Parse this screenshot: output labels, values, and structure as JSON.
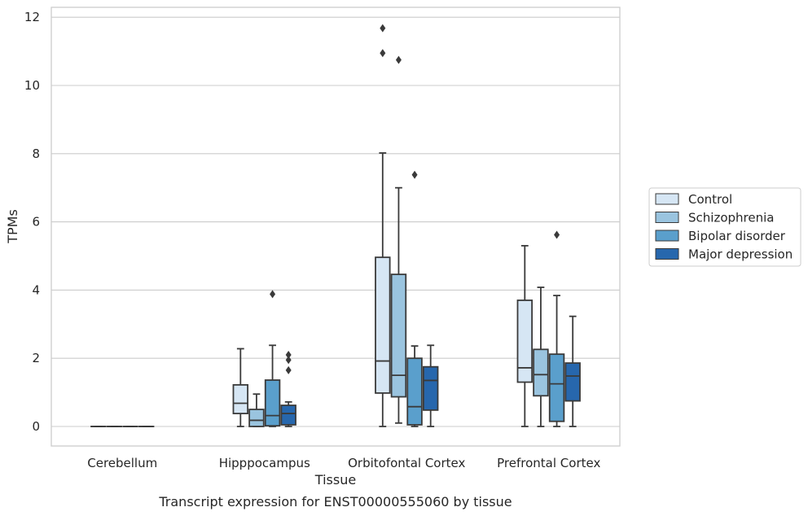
{
  "chart_data": {
    "type": "box",
    "title": "Transcript expression for ENST00000555060 by tissue",
    "xlabel": "Tissue",
    "ylabel": "TPMs",
    "ylim": [
      -0.6,
      12.3
    ],
    "yticks": [
      0,
      2,
      4,
      6,
      8,
      10,
      12
    ],
    "grid": true,
    "legend_position": "right",
    "categories": [
      "Cerebellum",
      "Hipppocampus",
      "Orbitofontal Cortex",
      "Prefrontal Cortex"
    ],
    "series": [
      {
        "name": "Control",
        "color": "#d6e6f4",
        "boxes": [
          {
            "whislo": 0,
            "q1": 0,
            "med": 0,
            "q3": 0,
            "whishi": 0,
            "fliers": []
          },
          {
            "whislo": 0,
            "q1": 0.38,
            "med": 0.68,
            "q3": 1.22,
            "whishi": 2.28,
            "fliers": []
          },
          {
            "whislo": 0,
            "q1": 0.98,
            "med": 1.92,
            "q3": 4.96,
            "whishi": 8.02,
            "fliers": [
              10.95,
              11.68
            ]
          },
          {
            "whislo": 0,
            "q1": 1.3,
            "med": 1.72,
            "q3": 3.7,
            "whishi": 5.3,
            "fliers": []
          }
        ]
      },
      {
        "name": "Schizophrenia",
        "color": "#9ac4df",
        "boxes": [
          {
            "whislo": 0,
            "q1": 0,
            "med": 0,
            "q3": 0,
            "whishi": 0,
            "fliers": []
          },
          {
            "whislo": 0,
            "q1": 0,
            "med": 0.18,
            "q3": 0.5,
            "whishi": 0.95,
            "fliers": []
          },
          {
            "whislo": 0.1,
            "q1": 0.87,
            "med": 1.5,
            "q3": 4.46,
            "whishi": 7.0,
            "fliers": [
              10.75
            ]
          },
          {
            "whislo": 0,
            "q1": 0.9,
            "med": 1.52,
            "q3": 2.26,
            "whishi": 4.08,
            "fliers": []
          }
        ]
      },
      {
        "name": "Bipolar disorder",
        "color": "#5a9fcc",
        "boxes": [
          {
            "whislo": 0,
            "q1": 0,
            "med": 0,
            "q3": 0,
            "whishi": 0,
            "fliers": []
          },
          {
            "whislo": 0,
            "q1": 0.02,
            "med": 0.32,
            "q3": 1.36,
            "whishi": 2.38,
            "fliers": [
              3.88
            ]
          },
          {
            "whislo": 0,
            "q1": 0.05,
            "med": 0.58,
            "q3": 2.0,
            "whishi": 2.36,
            "fliers": [
              7.38
            ]
          },
          {
            "whislo": 0,
            "q1": 0.15,
            "med": 1.25,
            "q3": 2.12,
            "whishi": 3.84,
            "fliers": [
              5.62
            ]
          }
        ]
      },
      {
        "name": "Major depression",
        "color": "#2767ad",
        "boxes": [
          {
            "whislo": 0,
            "q1": 0,
            "med": 0,
            "q3": 0,
            "whishi": 0,
            "fliers": []
          },
          {
            "whislo": 0,
            "q1": 0.05,
            "med": 0.38,
            "q3": 0.62,
            "whishi": 0.72,
            "fliers": [
              1.65,
              1.95,
              2.1
            ]
          },
          {
            "whislo": 0,
            "q1": 0.48,
            "med": 1.35,
            "q3": 1.75,
            "whishi": 2.38,
            "fliers": []
          },
          {
            "whislo": 0,
            "q1": 0.75,
            "med": 1.48,
            "q3": 1.86,
            "whishi": 3.23,
            "fliers": []
          }
        ]
      }
    ]
  }
}
